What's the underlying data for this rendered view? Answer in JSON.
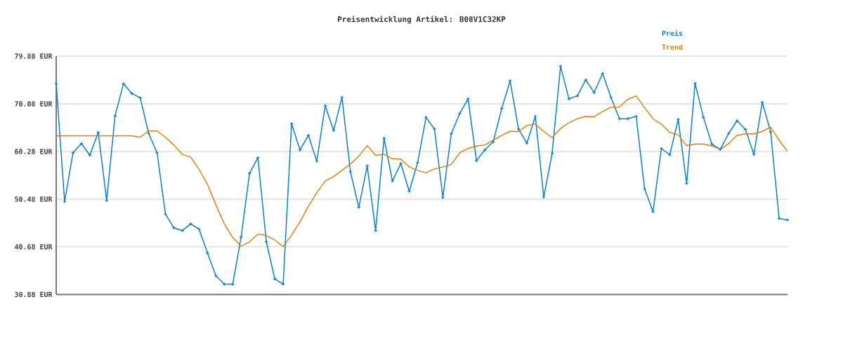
{
  "chart_data": {
    "type": "line",
    "title": "Preisentwicklung Artikel: B08V1C32KP",
    "categories": [
      null,
      null,
      null,
      null,
      null,
      null,
      null,
      null,
      null,
      null,
      null,
      null,
      null,
      null,
      null,
      null,
      null,
      null,
      null,
      null,
      null,
      null,
      null,
      null,
      null,
      null,
      null,
      null,
      null,
      null,
      null,
      null,
      null,
      null,
      null,
      null,
      null,
      null,
      null,
      null,
      null,
      null,
      null,
      null,
      null,
      null,
      null,
      null,
      null,
      null,
      null,
      null,
      null,
      null,
      null,
      null,
      null,
      null,
      null,
      null,
      null,
      null,
      null,
      null,
      null,
      null,
      null,
      null,
      null,
      null,
      null,
      null,
      null,
      null,
      null,
      null,
      null,
      null,
      null,
      null,
      null,
      null,
      null,
      null,
      null,
      null,
      null,
      null
    ],
    "series": [
      {
        "name": "Preis",
        "color": "#0a7fc9",
        "marker": "cross",
        "values": [
          74.2,
          50.0,
          60.0,
          61.9,
          59.5,
          64.2,
          50.2,
          67.6,
          74.2,
          72.2,
          71.3,
          64.0,
          60.0,
          47.4,
          44.6,
          44.0,
          45.4,
          44.3,
          39.4,
          34.7,
          33.0,
          33.0,
          42.7,
          55.8,
          59.0,
          41.7,
          34.1,
          33.0,
          66.0,
          60.6,
          63.6,
          58.3,
          69.7,
          64.6,
          71.4,
          56.1,
          48.8,
          57.3,
          44.0,
          63.0,
          54.2,
          57.8,
          52.1,
          58.0,
          67.3,
          64.9,
          50.8,
          63.9,
          68.1,
          71.1,
          58.4,
          60.6,
          62.3,
          69.1,
          74.8,
          64.9,
          62.0,
          67.5,
          50.9,
          59.9,
          77.8,
          71.1,
          71.7,
          75.0,
          72.4,
          76.3,
          71.4,
          67.0,
          67.0,
          67.5,
          52.6,
          47.9,
          60.9,
          59.6,
          66.9,
          53.7,
          74.3,
          67.3,
          61.8,
          60.7,
          64.0,
          66.6,
          64.8,
          59.7,
          70.4,
          64.3,
          46.5,
          46.2
        ]
      },
      {
        "name": "Trend",
        "color": "#e07b00",
        "marker": "none",
        "values": [
          63.5,
          63.5,
          63.5,
          63.5,
          63.5,
          63.5,
          63.5,
          63.5,
          63.5,
          63.5,
          63.2,
          64.5,
          64.5,
          63.2,
          61.6,
          59.7,
          59.1,
          56.6,
          53.5,
          49.3,
          45.4,
          42.6,
          40.8,
          41.7,
          43.3,
          43.0,
          42.1,
          40.7,
          43.1,
          45.8,
          49.0,
          51.8,
          54.2,
          55.1,
          56.4,
          57.7,
          59.3,
          61.5,
          59.5,
          59.7,
          58.8,
          58.7,
          57.1,
          56.4,
          55.9,
          56.7,
          57.1,
          57.6,
          60.0,
          60.9,
          61.4,
          61.6,
          62.6,
          63.6,
          64.4,
          64.4,
          65.6,
          65.9,
          64.4,
          63.1,
          65.0,
          66.2,
          67.0,
          67.5,
          67.4,
          68.5,
          69.4,
          69.4,
          71.0,
          71.7,
          69.3,
          67.0,
          65.9,
          64.2,
          63.7,
          61.5,
          61.8,
          61.8,
          61.4,
          60.7,
          61.9,
          63.6,
          63.9,
          63.9,
          64.4,
          65.3,
          62.6,
          60.3
        ]
      }
    ],
    "ylim": [
      30.88,
      79.88
    ],
    "yticks": [
      {
        "value": 30.88,
        "label": "30.88 EUR"
      },
      {
        "value": 40.68,
        "label": "40.68 EUR"
      },
      {
        "value": 50.48,
        "label": "50.48 EUR"
      },
      {
        "value": 60.28,
        "label": "60.28 EUR"
      },
      {
        "value": 70.08,
        "label": "70.08 EUR"
      },
      {
        "value": 79.88,
        "label": "79.88 EUR"
      }
    ],
    "grid": "y",
    "legend": "top right"
  }
}
